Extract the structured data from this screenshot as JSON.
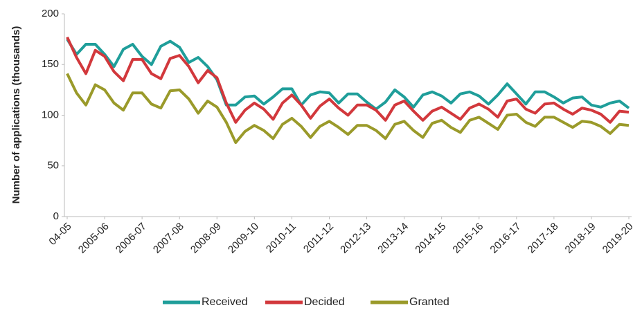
{
  "chart_data": {
    "type": "line",
    "y_label": "Number of applications (thousands)",
    "categories": [
      "04-05",
      null,
      null,
      null,
      "2005-06",
      null,
      null,
      null,
      "2006-07",
      null,
      null,
      null,
      "2007-08",
      null,
      null,
      null,
      "2008-09",
      null,
      null,
      null,
      "2009-10",
      null,
      null,
      null,
      "2010-11",
      null,
      null,
      null,
      "2011-12",
      null,
      null,
      null,
      "2012-13",
      null,
      null,
      null,
      "2013-14",
      null,
      null,
      null,
      "2014-15",
      null,
      null,
      null,
      "2015-16",
      null,
      null,
      null,
      "2016-17",
      null,
      null,
      null,
      "2017-18",
      null,
      null,
      null,
      "2018-19",
      null,
      null,
      null,
      "2019-20"
    ],
    "series": [
      {
        "name": "Received",
        "color": "#1f9e9a",
        "values": [
          175,
          160,
          170,
          170,
          160,
          148,
          165,
          170,
          158,
          150,
          168,
          173,
          167,
          152,
          157,
          148,
          135,
          110,
          110,
          118,
          119,
          111,
          118,
          126,
          126,
          110,
          120,
          123,
          122,
          112,
          121,
          121,
          113,
          106,
          113,
          125,
          118,
          108,
          120,
          123,
          119,
          112,
          121,
          123,
          119,
          111,
          120,
          131,
          121,
          111,
          123,
          123,
          118,
          112,
          117,
          118,
          110,
          108,
          112,
          114,
          107
        ]
      },
      {
        "name": "Decided",
        "color": "#d2383c",
        "values": [
          177,
          157,
          141,
          164,
          158,
          143,
          134,
          155,
          155,
          141,
          136,
          156,
          159,
          148,
          132,
          144,
          137,
          112,
          93,
          105,
          112,
          106,
          96,
          112,
          120,
          110,
          97,
          109,
          116,
          107,
          100,
          110,
          110,
          105,
          95,
          110,
          114,
          104,
          95,
          104,
          108,
          102,
          96,
          107,
          111,
          106,
          98,
          114,
          116,
          106,
          102,
          111,
          112,
          106,
          101,
          107,
          105,
          101,
          93,
          104,
          103
        ]
      },
      {
        "name": "Granted",
        "color": "#9a9a2a",
        "values": [
          141,
          122,
          110,
          130,
          125,
          112,
          105,
          122,
          122,
          111,
          107,
          124,
          125,
          116,
          102,
          114,
          108,
          93,
          73,
          84,
          90,
          85,
          77,
          91,
          97,
          89,
          78,
          89,
          94,
          88,
          81,
          90,
          90,
          85,
          77,
          91,
          94,
          85,
          78,
          92,
          95,
          88,
          83,
          95,
          98,
          92,
          86,
          100,
          101,
          93,
          89,
          98,
          98,
          93,
          88,
          94,
          93,
          89,
          82,
          91,
          90
        ]
      }
    ],
    "ylim": [
      0,
      200
    ],
    "yticks": [
      0,
      50,
      100,
      150,
      200
    ],
    "grid": false,
    "legend": "bottom"
  }
}
